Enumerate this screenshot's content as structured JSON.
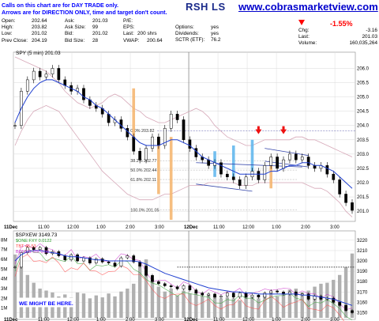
{
  "note": {
    "line1": "Calls on this chart are for DAY TRADE only.",
    "line2": "Arrows are for DIRECTION ONLY, time and target don't count."
  },
  "ticker_fragment": "RSH LS",
  "site": "www.cobrasmarketview.com",
  "quote": {
    "open_label": "Open:",
    "open": "202.64",
    "high_label": "High:",
    "high": "203.82",
    "low_label": "Low:",
    "low": "201.02",
    "prev_label": "Prev Close:",
    "prev": "204.19",
    "ask_label": "Ask:",
    "ask": "201.03",
    "asksize_label": "Ask Size:",
    "asksize": "99",
    "bid_label": "Bid:",
    "bid": "201.02",
    "bidsize_label": "Bid Size:",
    "bidsize": "28",
    "pe_label": "P/E:",
    "pe": "",
    "eps_label": "EPS:",
    "eps": "",
    "last_label": "Last:",
    "last": "200 shrs",
    "vwap_label": "VWAP:",
    "vwap": "200.64",
    "options_label": "Options:",
    "options": "yes",
    "dividends_label": "Dividends:",
    "dividends": "yes",
    "sctr_label": "SCTR (ETF):",
    "sctr": "76.2",
    "pct_change": "-1.55%",
    "chg_label": "Chg:",
    "chg": "-3.16",
    "last2_label": "Last:",
    "last2": "201.03",
    "volume_label": "Volume:",
    "volume": "160,035,264"
  },
  "colors": {
    "price": "#000000",
    "ma": "#1f3fd0",
    "band": "#d6a8b8",
    "fib": "#5555aa",
    "orange": "#f5b36a",
    "cyan": "#5ab4ec",
    "red": "#ee1111",
    "vol": "#b0b0b0",
    "spxew": "#000000",
    "one_fxy": "#2ca02c",
    "tbt": "#ff4444",
    "bonds_vix": "#cc33cc"
  },
  "chart_data": [
    {
      "type": "line",
      "title": "SPY (5 min) 201.03",
      "ylim": [
        200.7,
        206.4
      ],
      "yticks": [
        "206.0",
        "205.5",
        "205.0",
        "204.5",
        "204.0",
        "203.5",
        "203.0",
        "202.5",
        "202.0",
        "201.5",
        "201.0"
      ],
      "xticks": [
        "11Dec",
        "11:00",
        "12:00",
        "1:00",
        "2:00",
        "3:00",
        "12Dec",
        "11:00",
        "12:00",
        "1:00",
        "2:00",
        "3:00"
      ],
      "fib_levels": [
        {
          "label": "0.0% 203.82",
          "value": 203.82
        },
        {
          "label": "38.2% 202.77",
          "value": 202.77
        },
        {
          "label": "50.0% 202.44",
          "value": 202.44
        },
        {
          "label": "61.8% 202.11",
          "value": 202.11
        },
        {
          "label": "100.0% 201.05",
          "value": 201.05
        }
      ],
      "series": [
        {
          "values": [
            204.0,
            205.2,
            205.6,
            205.9,
            205.7,
            205.8,
            206.0,
            205.6,
            205.4,
            205.2,
            205.3,
            204.9,
            204.7,
            204.6,
            204.4,
            204.1,
            204.2,
            203.9,
            203.6,
            203.1,
            202.8,
            203.2,
            203.6,
            203.3,
            203.9,
            204.4,
            204.2,
            203.5,
            203.2,
            202.9,
            202.8,
            202.6,
            202.7,
            202.3,
            202.2,
            202.1,
            201.9,
            202.2,
            202.4,
            202.1,
            202.6,
            202.9,
            202.5,
            202.8,
            203.0,
            202.8,
            202.9,
            202.6,
            202.5,
            202.6,
            202.3,
            202.1,
            201.6,
            201.3,
            201.03
          ]
        },
        {
          "values": [
            204.1,
            204.6,
            205.0,
            205.3,
            205.5,
            205.6,
            205.6,
            205.5,
            205.4,
            205.3,
            205.2,
            205.0,
            204.9,
            204.7,
            204.6,
            204.4,
            204.2,
            204.0,
            203.8,
            203.6,
            203.4,
            203.3,
            203.3,
            203.3,
            203.4,
            203.5,
            203.5,
            203.4,
            203.3,
            203.1,
            202.9,
            202.8,
            202.7,
            202.6,
            202.5,
            202.4,
            202.3,
            202.3,
            202.3,
            202.3,
            202.3,
            202.4,
            202.4,
            202.5,
            202.6,
            202.6,
            202.7,
            202.7,
            202.6,
            202.6,
            202.5,
            202.4,
            202.2,
            202.0,
            201.8
          ]
        }
      ]
    },
    {
      "type": "line",
      "title": "$SPXEW 3149.73",
      "ylim": [
        3145,
        3226
      ],
      "yticks": [
        "3220",
        "3210",
        "3200",
        "3190",
        "3180",
        "3170",
        "3160",
        "3150"
      ],
      "vol_ticks": [
        "8M",
        "7M",
        "6M",
        "5M",
        "4M",
        "3M",
        "2M",
        "1M"
      ],
      "xticks": [
        "11Dec",
        "11:00",
        "12:00",
        "1:00",
        "2:00",
        "3:00",
        "12Dec",
        "11:00",
        "12:00",
        "1:00",
        "2:00",
        "3:00"
      ],
      "legend_secondary": [
        "$ONE:FXY 0.0122",
        "TBT 46.53",
        "BONDS:VIX 0.00"
      ],
      "series": [
        {
          "values": [
            3194,
            3208,
            3213,
            3211,
            3213,
            3207,
            3209,
            3205,
            3201,
            3206,
            3200,
            3203,
            3198,
            3202,
            3199,
            3198,
            3195,
            3203,
            3205,
            3199,
            3195,
            3186,
            3180,
            3178,
            3176,
            3175,
            3173,
            3176,
            3172,
            3169,
            3167,
            3168,
            3165,
            3166,
            3169,
            3165,
            3169,
            3165,
            3167,
            3165,
            3169,
            3171,
            3170,
            3168,
            3170,
            3167,
            3168,
            3163,
            3166,
            3163,
            3164,
            3160,
            3157,
            3152,
            3150
          ]
        },
        {
          "values": [
            3200,
            3206,
            3209,
            3210,
            3210,
            3209,
            3208,
            3207,
            3205,
            3204,
            3204,
            3203,
            3202,
            3201,
            3201,
            3200,
            3200,
            3200,
            3200,
            3200,
            3199,
            3197,
            3194,
            3191,
            3188,
            3186,
            3184,
            3182,
            3180,
            3178,
            3176,
            3174,
            3173,
            3172,
            3171,
            3170,
            3170,
            3169,
            3169,
            3168,
            3168,
            3168,
            3168,
            3168,
            3168,
            3168,
            3167,
            3167,
            3166,
            3165,
            3164,
            3163,
            3161,
            3159,
            3157
          ]
        }
      ],
      "volume_m": [
        6.5,
        5.2,
        4.4,
        3.6,
        3.0,
        2.8,
        2.6,
        2.2,
        2.4,
        2.1,
        2.6,
        2.5,
        2.0,
        2.3,
        2.1,
        2.5,
        2.2,
        2.7,
        3.0,
        3.5,
        5.4,
        6.0,
        4.0,
        3.2,
        2.7,
        3.0,
        2.3,
        2.8,
        2.5,
        2.6,
        2.2,
        2.4,
        2.3,
        2.0,
        2.1,
        2.0,
        1.8,
        2.2,
        2.1,
        2.0,
        2.4,
        2.6,
        2.2,
        2.5,
        2.9,
        3.0,
        2.6,
        2.8,
        3.2,
        3.5,
        3.6,
        3.9,
        4.4,
        5.2,
        6.6
      ]
    }
  ],
  "bottom_note": "WE MIGHT BE HERE.",
  "right_vol_tick_top": "3220"
}
